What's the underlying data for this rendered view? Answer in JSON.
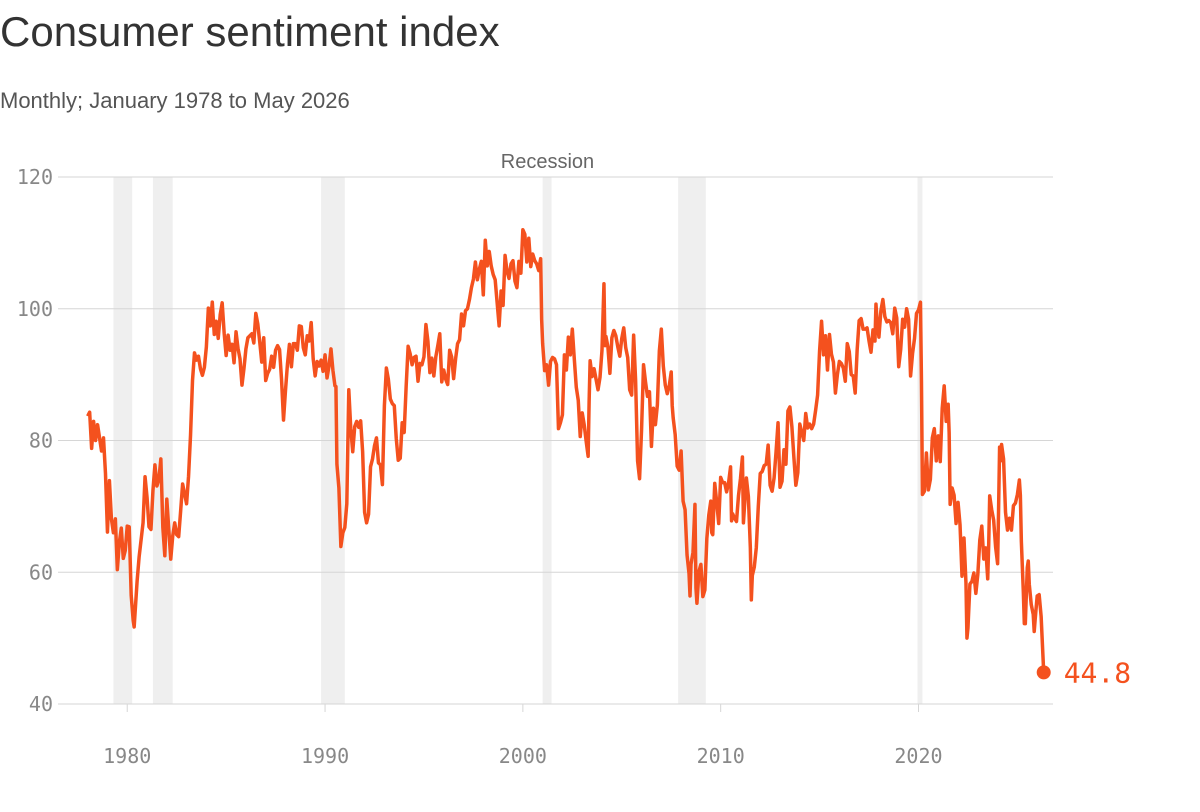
{
  "chart_data": {
    "type": "line",
    "title": "Consumer sentiment index",
    "subtitle": "Monthly; January 1978 to May 2026",
    "annotation": "Recession",
    "recessions": [
      [
        1979.3,
        1980.25
      ],
      [
        1981.3,
        1982.3
      ],
      [
        1989.8,
        1991.0
      ],
      [
        2001.0,
        2001.45
      ],
      [
        2007.85,
        2009.25
      ],
      [
        2019.95,
        2020.2
      ]
    ],
    "xlim": [
      1976.5,
      2026.8
    ],
    "xticks": [
      1980,
      1990,
      2000,
      2010,
      2020
    ],
    "ylim": [
      40,
      120
    ],
    "yticks": [
      40,
      60,
      80,
      100,
      120
    ],
    "grid": true,
    "x": [
      1978,
      1978.1,
      1978.2,
      1978.3,
      1978.4,
      1978.5,
      1978.7,
      1978.8,
      1978.9,
      1979,
      1979.1,
      1979.2,
      1979.3,
      1979.4,
      1979.5,
      1979.6,
      1979.7,
      1979.8,
      1979.9,
      1980,
      1980.1,
      1980.2,
      1980.3,
      1980.35,
      1980.5,
      1980.6,
      1980.8,
      1980.9,
      1981,
      1981.1,
      1981.2,
      1981.3,
      1981.4,
      1981.5,
      1981.6,
      1981.7,
      1981.8,
      1981.9,
      1982,
      1982.1,
      1982.2,
      1982.3,
      1982.4,
      1982.5,
      1982.6,
      1982.7,
      1982.8,
      1982.9,
      1983,
      1983.1,
      1983.2,
      1983.3,
      1983.4,
      1983.5,
      1983.6,
      1983.7,
      1983.8,
      1983.9,
      1984,
      1984.1,
      1984.2,
      1984.3,
      1984.4,
      1984.5,
      1984.6,
      1984.7,
      1984.8,
      1984.9,
      1985,
      1985.1,
      1985.2,
      1985.3,
      1985.4,
      1985.5,
      1985.6,
      1985.7,
      1985.8,
      1985.9,
      1986,
      1986.1,
      1986.2,
      1986.3,
      1986.4,
      1986.5,
      1986.6,
      1986.7,
      1986.8,
      1986.9,
      1987,
      1987.1,
      1987.2,
      1987.3,
      1987.4,
      1987.5,
      1987.6,
      1987.7,
      1987.8,
      1987.9,
      1988,
      1988.1,
      1988.2,
      1988.3,
      1988.4,
      1988.5,
      1988.6,
      1988.7,
      1988.8,
      1988.9,
      1989,
      1989.1,
      1989.2,
      1989.3,
      1989.4,
      1989.5,
      1989.6,
      1989.7,
      1989.8,
      1989.9,
      1990,
      1990.1,
      1990.2,
      1990.3,
      1990.4,
      1990.5,
      1990.55,
      1990.6,
      1990.7,
      1990.8,
      1990.9,
      1991,
      1991.1,
      1991.2,
      1991.3,
      1991.4,
      1991.5,
      1991.6,
      1991.7,
      1991.8,
      1991.9,
      1992,
      1992.1,
      1992.2,
      1992.3,
      1992.4,
      1992.5,
      1992.6,
      1992.7,
      1992.8,
      1992.9,
      1993,
      1993.1,
      1993.2,
      1993.3,
      1993.4,
      1993.5,
      1993.6,
      1993.7,
      1993.8,
      1993.9,
      1994,
      1994.1,
      1994.2,
      1994.3,
      1994.4,
      1994.5,
      1994.6,
      1994.7,
      1994.8,
      1994.9,
      1995,
      1995.1,
      1995.2,
      1995.3,
      1995.4,
      1995.5,
      1995.6,
      1995.7,
      1995.8,
      1995.9,
      1996,
      1996.1,
      1996.2,
      1996.3,
      1996.4,
      1996.5,
      1996.6,
      1996.7,
      1996.8,
      1996.9,
      1997,
      1997.1,
      1997.2,
      1997.3,
      1997.4,
      1997.5,
      1997.6,
      1997.7,
      1997.8,
      1997.9,
      1998,
      1998.1,
      1998.2,
      1998.3,
      1998.4,
      1998.5,
      1998.6,
      1998.7,
      1998.8,
      1998.9,
      1999,
      1999.1,
      1999.2,
      1999.3,
      1999.4,
      1999.5,
      1999.6,
      1999.7,
      1999.8,
      1999.9,
      2000,
      2000.1,
      2000.2,
      2000.3,
      2000.4,
      2000.5,
      2000.6,
      2000.7,
      2000.8,
      2000.9,
      2000.95,
      2001,
      2001.1,
      2001.2,
      2001.3,
      2001.4,
      2001.5,
      2001.6,
      2001.7,
      2001.8,
      2001.9,
      2002,
      2002.1,
      2002.2,
      2002.3,
      2002.4,
      2002.5,
      2002.6,
      2002.7,
      2002.8,
      2002.9,
      2003,
      2003.1,
      2003.2,
      2003.3,
      2003.35,
      2003.4,
      2003.5,
      2003.6,
      2003.7,
      2003.8,
      2003.9,
      2004,
      2004.1,
      2004.15,
      2004.2,
      2004.3,
      2004.4,
      2004.5,
      2004.6,
      2004.7,
      2004.8,
      2004.9,
      2005,
      2005.1,
      2005.2,
      2005.3,
      2005.4,
      2005.5,
      2005.6,
      2005.7,
      2005.8,
      2005.9,
      2006,
      2006.1,
      2006.2,
      2006.3,
      2006.4,
      2006.5,
      2006.6,
      2006.7,
      2006.8,
      2006.9,
      2007,
      2007.1,
      2007.2,
      2007.3,
      2007.4,
      2007.5,
      2007.55,
      2007.6,
      2007.7,
      2007.8,
      2007.9,
      2008,
      2008.1,
      2008.2,
      2008.3,
      2008.4,
      2008.45,
      2008.5,
      2008.6,
      2008.7,
      2008.75,
      2008.8,
      2008.9,
      2009,
      2009.1,
      2009.2,
      2009.3,
      2009.4,
      2009.5,
      2009.55,
      2009.6,
      2009.7,
      2009.8,
      2009.9,
      2010,
      2010.1,
      2010.2,
      2010.3,
      2010.4,
      2010.5,
      2010.55,
      2010.6,
      2010.7,
      2010.8,
      2010.9,
      2011,
      2011.1,
      2011.15,
      2011.2,
      2011.3,
      2011.4,
      2011.5,
      2011.55,
      2011.6,
      2011.7,
      2011.8,
      2011.9,
      2012,
      2012.1,
      2012.2,
      2012.3,
      2012.4,
      2012.5,
      2012.6,
      2012.7,
      2012.8,
      2012.9,
      2013,
      2013.1,
      2013.2,
      2013.3,
      2013.4,
      2013.5,
      2013.6,
      2013.7,
      2013.8,
      2013.9,
      2014,
      2014.1,
      2014.2,
      2014.3,
      2014.4,
      2014.5,
      2014.6,
      2014.7,
      2014.8,
      2014.9,
      2015,
      2015.1,
      2015.2,
      2015.3,
      2015.4,
      2015.5,
      2015.6,
      2015.7,
      2015.8,
      2015.9,
      2016,
      2016.1,
      2016.2,
      2016.3,
      2016.4,
      2016.5,
      2016.6,
      2016.7,
      2016.8,
      2016.9,
      2017,
      2017.1,
      2017.2,
      2017.3,
      2017.4,
      2017.5,
      2017.6,
      2017.7,
      2017.8,
      2017.85,
      2017.9,
      2018,
      2018.1,
      2018.2,
      2018.3,
      2018.4,
      2018.5,
      2018.6,
      2018.7,
      2018.8,
      2018.9,
      2019,
      2019.1,
      2019.2,
      2019.3,
      2019.4,
      2019.5,
      2019.6,
      2019.7,
      2019.8,
      2019.9,
      2020,
      2020.1,
      2020.15,
      2020.2,
      2020.3,
      2020.4,
      2020.5,
      2020.6,
      2020.7,
      2020.8,
      2020.9,
      2021,
      2021.1,
      2021.2,
      2021.3,
      2021.4,
      2021.5,
      2021.55,
      2021.6,
      2021.7,
      2021.8,
      2021.9,
      2022,
      2022.1,
      2022.2,
      2022.3,
      2022.4,
      2022.45,
      2022.5,
      2022.6,
      2022.7,
      2022.8,
      2022.9,
      2023,
      2023.1,
      2023.2,
      2023.3,
      2023.4,
      2023.5,
      2023.55,
      2023.6,
      2023.7,
      2023.8,
      2023.9,
      2024,
      2024.05,
      2024.1,
      2024.15,
      2024.2,
      2024.3,
      2024.4,
      2024.5,
      2024.6,
      2024.7,
      2024.8,
      2024.9,
      2025,
      2025.1,
      2025.15,
      2025.2,
      2025.3,
      2025.35,
      2025.4,
      2025.5,
      2025.55,
      2025.6,
      2025.7,
      2025.8,
      2025.85,
      2025.9,
      2026,
      2026.1,
      2026.2,
      2026.33
    ],
    "series": [
      {
        "color": "#f4511e",
        "values": [
          83.7,
          84.3,
          78.8,
          82.9,
          80.0,
          82.4,
          78.4,
          80.4,
          75.0,
          66.1,
          73.9,
          68.1,
          66.0,
          68.1,
          60.4,
          64.5,
          66.7,
          62.1,
          63.3,
          67.0,
          66.9,
          56.5,
          52.7,
          51.7,
          58.7,
          62.3,
          67.5,
          74.5,
          71.4,
          66.9,
          66.5,
          72.4,
          76.3,
          73.1,
          74.1,
          77.2,
          66.8,
          62.5,
          71.1,
          66.5,
          62.0,
          65.5,
          67.5,
          65.7,
          65.4,
          69.3,
          73.4,
          71.9,
          70.4,
          74.6,
          80.8,
          89.1,
          93.3,
          92.2,
          92.8,
          90.9,
          89.9,
          91.1,
          94.2,
          100.1,
          97.4,
          101.0,
          96.1,
          98.1,
          95.5,
          99.1,
          100.9,
          96.3,
          92.9,
          96.0,
          93.7,
          94.6,
          91.8,
          96.5,
          94.0,
          92.4,
          88.4,
          90.9,
          93.9,
          95.6,
          95.9,
          96.2,
          94.8,
          99.3,
          97.7,
          94.9,
          91.9,
          95.6,
          89.1,
          90.2,
          90.8,
          92.8,
          91.1,
          93.7,
          94.4,
          93.8,
          89.3,
          83.1,
          87.6,
          91.6,
          94.6,
          91.2,
          94.7,
          94.7,
          93.7,
          97.4,
          97.3,
          94.1,
          93.0,
          95.9,
          95.1,
          97.9,
          92.4,
          89.8,
          92.0,
          91.3,
          92.2,
          90.5,
          93.0,
          89.5,
          91.3,
          93.9,
          90.6,
          88.3,
          88.2,
          76.4,
          72.8,
          63.9,
          66.0,
          66.8,
          70.4,
          87.7,
          81.8,
          78.3,
          82.1,
          82.9,
          82.0,
          83.0,
          78.3,
          69.1,
          67.5,
          68.8,
          76.0,
          77.2,
          79.2,
          80.4,
          76.6,
          76.3,
          73.3,
          85.3,
          91.0,
          89.3,
          86.3,
          85.6,
          85.3,
          80.3,
          77.0,
          77.3,
          82.7,
          81.2,
          88.2,
          94.3,
          93.2,
          91.5,
          92.6,
          92.8,
          89.0,
          91.7,
          91.5,
          92.7,
          97.6,
          95.1,
          90.3,
          92.5,
          89.8,
          92.7,
          94.4,
          96.2,
          88.9,
          90.7,
          89.3,
          88.5,
          93.7,
          92.7,
          89.4,
          92.4,
          94.7,
          95.3,
          99.2,
          97.4,
          99.7,
          100.0,
          101.4,
          103.2,
          104.5,
          107.1,
          104.4,
          106.0,
          107.2,
          102.1,
          110.4,
          106.5,
          108.7,
          106.5,
          105.2,
          104.4,
          100.9,
          97.4,
          102.7,
          100.5,
          108.1,
          105.7,
          104.6,
          106.8,
          107.3,
          104.2,
          103.2,
          107.2,
          105.4,
          112.0,
          111.3,
          107.1,
          110.7,
          106.4,
          108.3,
          107.3,
          106.8,
          105.8,
          107.6,
          98.4,
          94.7,
          90.6,
          91.5,
          88.4,
          92.0,
          92.6,
          92.4,
          91.5,
          81.8,
          82.7,
          83.9,
          93.0,
          90.7,
          95.7,
          93.0,
          96.9,
          92.4,
          88.1,
          86.1,
          80.6,
          84.2,
          82.4,
          79.9,
          77.6,
          86.0,
          92.1,
          89.7,
          90.9,
          89.3,
          87.7,
          89.6,
          93.7,
          103.8,
          94.4,
          95.8,
          94.2,
          90.2,
          95.6,
          96.7,
          95.9,
          94.2,
          92.8,
          95.5,
          97.1,
          94.1,
          92.6,
          87.7,
          86.9,
          96.0,
          89.1,
          76.9,
          74.2,
          81.6,
          91.5,
          88.9,
          86.7,
          87.4,
          79.1,
          84.9,
          82.4,
          85.4,
          93.6,
          96.9,
          91.3,
          88.4,
          87.1,
          88.3,
          90.4,
          85.3,
          83.4,
          80.9,
          76.1,
          75.5,
          78.4,
          70.8,
          69.5,
          62.6,
          59.8,
          56.4,
          61.2,
          63.0,
          70.3,
          57.6,
          55.3,
          60.1,
          61.2,
          56.3,
          57.3,
          65.1,
          68.7,
          70.8,
          66.0,
          65.7,
          73.5,
          70.6,
          67.4,
          74.4,
          73.6,
          73.6,
          72.2,
          73.6,
          76.0,
          67.8,
          68.9,
          68.2,
          67.7,
          71.6,
          74.2,
          77.5,
          67.5,
          69.8,
          74.3,
          71.5,
          63.7,
          55.8,
          59.5,
          60.8,
          63.7,
          69.9,
          75.0,
          75.3,
          76.2,
          76.4,
          79.3,
          73.2,
          72.3,
          74.3,
          78.3,
          82.7,
          72.9,
          73.8,
          78.6,
          76.4,
          84.5,
          85.1,
          82.1,
          77.5,
          73.2,
          75.1,
          82.5,
          81.2,
          80.0,
          84.1,
          81.9,
          82.5,
          81.8,
          82.5,
          84.6,
          86.9,
          93.6,
          98.1,
          93.0,
          95.9,
          90.7,
          96.1,
          93.1,
          91.9,
          87.2,
          90.0,
          92.0,
          91.7,
          91.0,
          89.0,
          94.7,
          93.5,
          90.0,
          89.8,
          87.2,
          93.8,
          98.2,
          98.5,
          96.9,
          96.9,
          97.1,
          95.1,
          93.4,
          96.8,
          95.1,
          100.7,
          98.5,
          95.7,
          99.7,
          101.4,
          98.8,
          98.0,
          98.2,
          97.9,
          96.2,
          100.1,
          98.6,
          91.2,
          93.8,
          98.4,
          97.2,
          100.0,
          98.4,
          89.8,
          93.2,
          95.5,
          99.3,
          99.8,
          101.0,
          89.1,
          71.8,
          72.3,
          78.1,
          72.5,
          74.1,
          80.4,
          81.8,
          76.9,
          80.7,
          76.8,
          84.9,
          88.3,
          82.9,
          85.5,
          81.2,
          70.3,
          72.8,
          71.7,
          67.4,
          70.6,
          67.2,
          59.4,
          65.2,
          58.4,
          50.0,
          51.5,
          58.2,
          58.6,
          59.9,
          56.8,
          59.7,
          64.9,
          67.0,
          62.0,
          63.7,
          59.0,
          64.2,
          71.6,
          69.5,
          67.9,
          63.8,
          61.3,
          69.7,
          79.0,
          76.9,
          79.4,
          77.2,
          69.1,
          66.4,
          68.2,
          66.4,
          70.1,
          70.5,
          71.8,
          74.0,
          71.7,
          64.7,
          57.0,
          52.2,
          52.2,
          60.7,
          61.7,
          58.2,
          55.1,
          53.6,
          51.0,
          52.9,
          56.4,
          56.6,
          53.3,
          44.8
        ]
      }
    ]
  }
}
